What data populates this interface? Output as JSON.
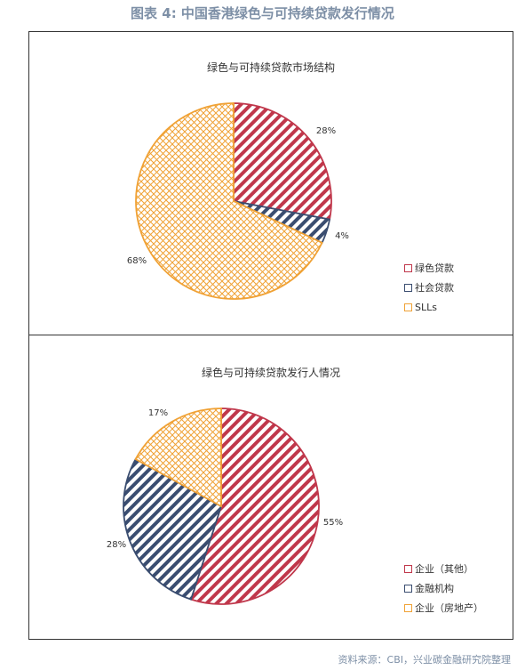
{
  "title": "图表 4:  中国香港绿色与可持续贷款发行情况",
  "source": "资料来源：CBI，兴业碳金融研究院整理",
  "colors": {
    "red": "#c0374b",
    "navy": "#3a4d70",
    "orange": "#f0a236"
  },
  "chart_data": [
    {
      "type": "pie",
      "title": "绿色与可持续贷款市场结构",
      "categories": [
        "绿色贷款",
        "社会贷款",
        "SLLs"
      ],
      "values": [
        28,
        4,
        68
      ],
      "labels": [
        "28%",
        "4%",
        "68%"
      ],
      "legend": "right",
      "patterns": [
        "stripe",
        "stripe",
        "crosshatch"
      ],
      "colors": [
        "#c0374b",
        "#3a4d70",
        "#f0a236"
      ]
    },
    {
      "type": "pie",
      "title": "绿色与可持续贷款发行人情况",
      "categories": [
        "企业（其他）",
        "金融机构",
        "企业（房地产）"
      ],
      "values": [
        55,
        28,
        17
      ],
      "labels": [
        "55%",
        "28%",
        "17%"
      ],
      "legend": "right",
      "patterns": [
        "stripe",
        "stripe",
        "crosshatch"
      ],
      "colors": [
        "#c0374b",
        "#3a4d70",
        "#f0a236"
      ]
    }
  ]
}
